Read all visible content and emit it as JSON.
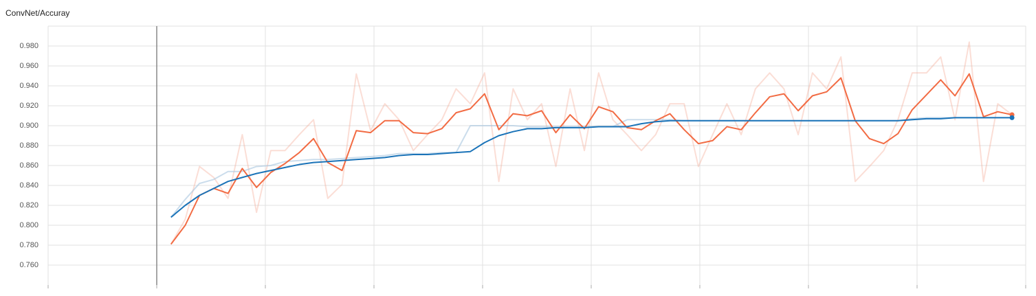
{
  "chart_data": {
    "type": "line",
    "title": "ConvNet/Accuray",
    "x": [
      1,
      2,
      3,
      4,
      5,
      6,
      7,
      8,
      9,
      10,
      11,
      12,
      13,
      14,
      15,
      16,
      17,
      18,
      19,
      20,
      21,
      22,
      23,
      24,
      25,
      26,
      27,
      28,
      29,
      30,
      31,
      32,
      33,
      34,
      35,
      36,
      37,
      38,
      39,
      40,
      41,
      42,
      43,
      44,
      45,
      46,
      47,
      48,
      49,
      50,
      51,
      52,
      53,
      54,
      55,
      56,
      57,
      58,
      59,
      60
    ],
    "xlim": [
      -7.62,
      60.96
    ],
    "xticks": [
      -7.62,
      0,
      7.62,
      15.24,
      22.86,
      30.48,
      38.1,
      45.72,
      53.34,
      60.96
    ],
    "ylim": [
      0.74,
      1.0
    ],
    "yticks": [
      {
        "value": 0.76,
        "label": "0.760"
      },
      {
        "value": 0.78,
        "label": "0.780"
      },
      {
        "value": 0.8,
        "label": "0.800"
      },
      {
        "value": 0.82,
        "label": "0.820"
      },
      {
        "value": 0.84,
        "label": "0.840"
      },
      {
        "value": 0.86,
        "label": "0.860"
      },
      {
        "value": 0.88,
        "label": "0.880"
      },
      {
        "value": 0.9,
        "label": "0.900"
      },
      {
        "value": 0.92,
        "label": "0.920"
      },
      {
        "value": 0.94,
        "label": "0.940"
      },
      {
        "value": 0.96,
        "label": "0.960"
      },
      {
        "value": 0.98,
        "label": "0.980"
      }
    ],
    "grid": true,
    "series": [
      {
        "color": "#f4a08a",
        "opacity": 0.35,
        "values": [
          0.781,
          0.806,
          0.859,
          0.848,
          0.827,
          0.891,
          0.813,
          0.875,
          0.875,
          0.891,
          0.906,
          0.827,
          0.841,
          0.952,
          0.895,
          0.922,
          0.906,
          0.875,
          0.891,
          0.906,
          0.937,
          0.922,
          0.953,
          0.844,
          0.937,
          0.906,
          0.922,
          0.859,
          0.937,
          0.875,
          0.953,
          0.906,
          0.891,
          0.875,
          0.891,
          0.922,
          0.922,
          0.859,
          0.891,
          0.922,
          0.891,
          0.937,
          0.953,
          0.937,
          0.891,
          0.953,
          0.937,
          0.969,
          0.844,
          0.859,
          0.875,
          0.906,
          0.953,
          0.953,
          0.969,
          0.906,
          0.984,
          0.844,
          0.922,
          0.911
        ]
      },
      {
        "color": "#a9c6e0",
        "opacity": 0.6,
        "values": [
          0.808,
          0.826,
          0.842,
          0.846,
          0.854,
          0.854,
          0.859,
          0.86,
          0.864,
          0.865,
          0.866,
          0.866,
          0.867,
          0.868,
          0.869,
          0.87,
          0.872,
          0.872,
          0.872,
          0.873,
          0.873,
          0.9,
          0.9,
          0.9,
          0.9,
          0.899,
          0.899,
          0.899,
          0.899,
          0.899,
          0.899,
          0.899,
          0.906,
          0.906,
          0.906,
          0.906,
          0.905,
          0.905,
          0.905,
          0.905,
          0.905,
          0.905,
          0.905,
          0.905,
          0.905,
          0.905,
          0.905,
          0.905,
          0.905,
          0.905,
          0.905,
          0.905,
          0.907,
          0.908,
          0.908,
          0.908,
          0.908,
          0.908,
          0.908,
          0.908
        ]
      },
      {
        "color": "#f26b43",
        "opacity": 1,
        "values": [
          0.781,
          0.8,
          0.83,
          0.837,
          0.832,
          0.857,
          0.838,
          0.853,
          0.862,
          0.873,
          0.887,
          0.863,
          0.855,
          0.895,
          0.893,
          0.905,
          0.905,
          0.893,
          0.892,
          0.897,
          0.913,
          0.917,
          0.932,
          0.896,
          0.912,
          0.91,
          0.915,
          0.893,
          0.911,
          0.897,
          0.919,
          0.914,
          0.898,
          0.896,
          0.905,
          0.912,
          0.896,
          0.882,
          0.885,
          0.899,
          0.896,
          0.913,
          0.929,
          0.932,
          0.915,
          0.93,
          0.934,
          0.948,
          0.905,
          0.887,
          0.882,
          0.892,
          0.916,
          0.931,
          0.946,
          0.93,
          0.952,
          0.909,
          0.914,
          0.911
        ]
      },
      {
        "color": "#1a73b8",
        "opacity": 1,
        "values": [
          0.808,
          0.82,
          0.83,
          0.837,
          0.844,
          0.848,
          0.852,
          0.855,
          0.858,
          0.861,
          0.863,
          0.864,
          0.865,
          0.866,
          0.867,
          0.868,
          0.87,
          0.871,
          0.871,
          0.872,
          0.873,
          0.874,
          0.883,
          0.89,
          0.894,
          0.897,
          0.897,
          0.898,
          0.898,
          0.898,
          0.899,
          0.899,
          0.899,
          0.902,
          0.904,
          0.905,
          0.905,
          0.905,
          0.905,
          0.905,
          0.905,
          0.905,
          0.905,
          0.905,
          0.905,
          0.905,
          0.905,
          0.905,
          0.905,
          0.905,
          0.905,
          0.905,
          0.906,
          0.907,
          0.907,
          0.908,
          0.908,
          0.908,
          0.908,
          0.908
        ]
      }
    ]
  }
}
